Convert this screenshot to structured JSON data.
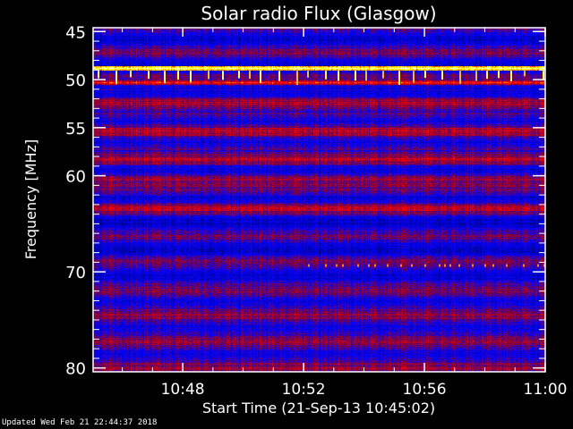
{
  "chart_data": {
    "type": "heatmap",
    "title": "Solar radio Flux (Glasgow)",
    "xlabel": "Start Time (21-Sep-13 10:45:02)",
    "ylabel": "Frequency [MHz]",
    "x_range": [
      "10:45:02",
      "11:00:00"
    ],
    "y_range": [
      44.6,
      80.4
    ],
    "y_inverted": true,
    "x_ticks": [
      "10:48",
      "10:52",
      "10:56",
      "11:00"
    ],
    "y_ticks": [
      45,
      50,
      55,
      60,
      70,
      80
    ],
    "colormap": [
      "#000080",
      "#0000ff",
      "#800040",
      "#ff0000",
      "#ffff00",
      "#ffffff"
    ],
    "features": [
      {
        "frequency_mhz": 48.8,
        "level": "high"
      },
      {
        "frequency_mhz": 50.3,
        "level": "elevated"
      },
      {
        "frequency_mhz": 69.2,
        "level": "intermittent"
      }
    ],
    "grid": false
  },
  "footer": {
    "updated": "Updated Wed Feb 21 22:44:37 2018"
  }
}
